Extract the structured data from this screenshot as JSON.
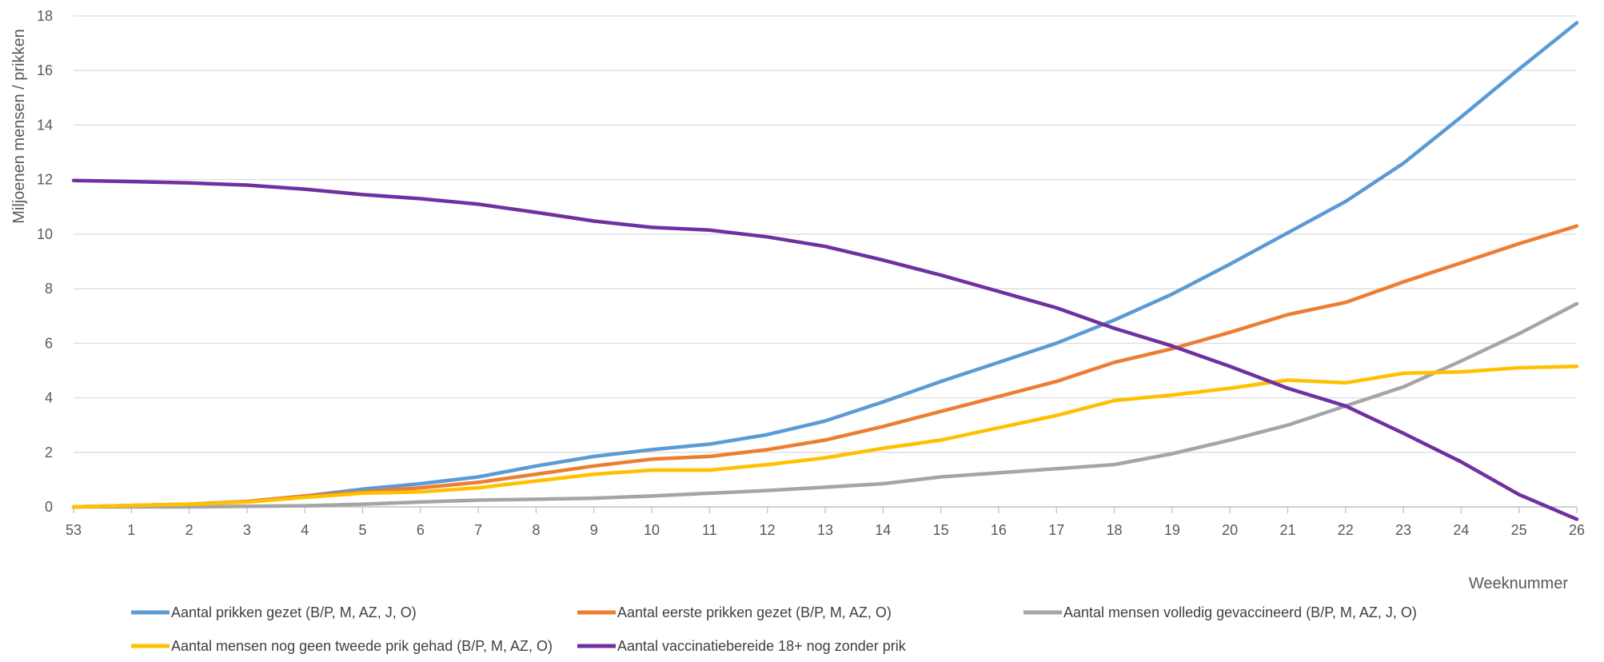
{
  "chart_data": {
    "type": "line",
    "ylabel": "Miljoenen mensen / prikken",
    "xlabel": "Weeknummer",
    "ylim": [
      0,
      18
    ],
    "yticks": [
      "0",
      "2",
      "4",
      "6",
      "8",
      "10",
      "12",
      "14",
      "16",
      "18"
    ],
    "grid": "horizontal",
    "legend_position": "bottom",
    "categories": [
      "53",
      "1",
      "2",
      "3",
      "4",
      "5",
      "6",
      "7",
      "8",
      "9",
      "10",
      "11",
      "12",
      "13",
      "14",
      "15",
      "16",
      "17",
      "18",
      "19",
      "20",
      "21",
      "22",
      "23",
      "24",
      "25",
      "26"
    ],
    "series": [
      {
        "name": "Aantal prikken gezet (B/P, M, AZ, J, O)",
        "color": "#5B9BD5",
        "values": [
          0.0,
          0.05,
          0.1,
          0.2,
          0.4,
          0.65,
          0.85,
          1.1,
          1.5,
          1.85,
          2.1,
          2.3,
          2.65,
          3.15,
          3.85,
          4.6,
          5.3,
          6.0,
          6.85,
          7.8,
          8.9,
          10.05,
          11.2,
          12.6,
          14.3,
          16.05,
          17.75
        ]
      },
      {
        "name": "Aantal eerste prikken gezet (B/P, M, AZ, O)",
        "color": "#ED7D31",
        "values": [
          0.0,
          0.05,
          0.1,
          0.2,
          0.4,
          0.55,
          0.7,
          0.9,
          1.2,
          1.5,
          1.75,
          1.85,
          2.1,
          2.45,
          2.95,
          3.5,
          4.05,
          4.6,
          5.3,
          5.8,
          6.4,
          7.05,
          7.5,
          8.25,
          8.95,
          9.65,
          10.3
        ]
      },
      {
        "name": "Aantal mensen volledig gevaccineerd (B/P, M, AZ, J, O)",
        "color": "#A5A5A5",
        "values": [
          0.0,
          0.0,
          0.0,
          0.02,
          0.04,
          0.1,
          0.18,
          0.25,
          0.28,
          0.32,
          0.4,
          0.5,
          0.6,
          0.72,
          0.85,
          1.1,
          1.25,
          1.4,
          1.55,
          1.95,
          2.45,
          3.0,
          3.7,
          4.4,
          5.35,
          6.35,
          7.45
        ]
      },
      {
        "name": "Aantal mensen nog geen tweede prik gehad (B/P, M, AZ, O)",
        "color": "#FFC000",
        "values": [
          0.0,
          0.05,
          0.1,
          0.18,
          0.35,
          0.5,
          0.55,
          0.7,
          0.95,
          1.2,
          1.35,
          1.35,
          1.55,
          1.8,
          2.15,
          2.45,
          2.9,
          3.35,
          3.9,
          4.1,
          4.35,
          4.65,
          4.55,
          4.9,
          4.95,
          5.1,
          5.15
        ]
      },
      {
        "name": "Aantal vaccinatiebereide 18+ nog zonder prik",
        "color": "#7030A0",
        "values": [
          11.97,
          11.93,
          11.88,
          11.8,
          11.65,
          11.45,
          11.3,
          11.1,
          10.8,
          10.48,
          10.25,
          10.15,
          9.9,
          9.55,
          9.05,
          8.5,
          7.9,
          7.3,
          6.55,
          5.9,
          5.15,
          4.35,
          3.7,
          2.7,
          1.65,
          0.45,
          -0.45
        ]
      }
    ]
  }
}
